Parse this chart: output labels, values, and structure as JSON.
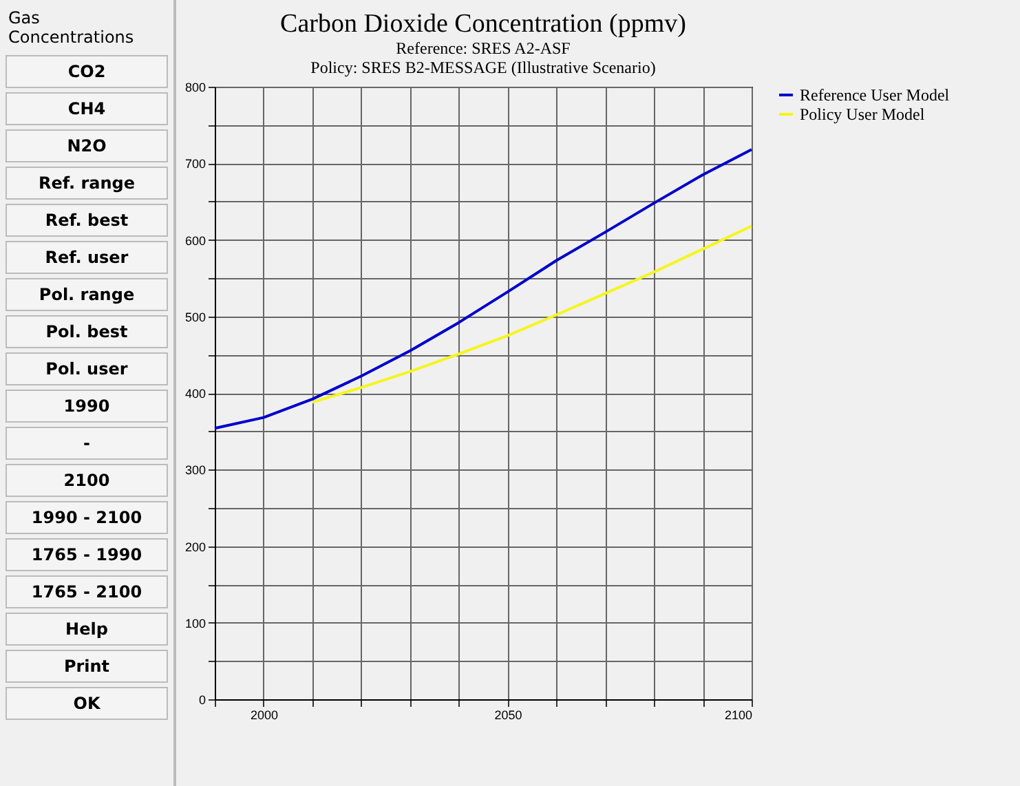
{
  "chart_data": [
    {
      "type": "other",
      "title": "Gas Concentrations",
      "annotations": [
        "CO2",
        "CH4",
        "N2O",
        "Ref. range",
        "Ref. best",
        "Ref. user",
        "Pol. range",
        "Pol. best",
        "Pol. user",
        "1990",
        "-",
        "2100",
        "1990 - 2100",
        "1765 - 1990",
        "1765 - 2100",
        "Help",
        "Print",
        "OK"
      ]
    },
    {
      "type": "line",
      "title": "Carbon Dioxide Concentration (ppmv)",
      "subtitle": "Reference: SRES A2-ASF\nPolicy: SRES B2-MESSAGE (Illustrative Scenario)",
      "x": [
        1990,
        2000,
        2010,
        2020,
        2030,
        2040,
        2050,
        2060,
        2070,
        2080,
        2090,
        2100
      ],
      "series": [
        {
          "name": "Reference User Model",
          "color": "#0000cc",
          "values": [
            354,
            368,
            392,
            422,
            455,
            492,
            532,
            573,
            610,
            648,
            685,
            718
          ]
        },
        {
          "name": "Policy User Model",
          "color": "#f5f51e",
          "x": [
            2010,
            2020,
            2030,
            2040,
            2050,
            2060,
            2070,
            2080,
            2090,
            2100
          ],
          "values": [
            388,
            407,
            428,
            451,
            475,
            502,
            530,
            558,
            588,
            618
          ]
        }
      ],
      "xlim": [
        1990,
        2100
      ],
      "xticks": [
        {
          "value": 1990,
          "label": null
        },
        2000,
        {
          "value": 2010,
          "label": null
        },
        {
          "value": 2020,
          "label": null
        },
        {
          "value": 2030,
          "label": null
        },
        {
          "value": 2040,
          "label": null
        },
        2050,
        {
          "value": 2060,
          "label": null
        },
        {
          "value": 2070,
          "label": null
        },
        {
          "value": 2080,
          "label": null
        },
        {
          "value": 2090,
          "label": null
        },
        2100
      ],
      "ylim": [
        0,
        800
      ],
      "yticks": [
        0,
        {
          "value": 50,
          "label": null
        },
        100,
        {
          "value": 150,
          "label": null
        },
        200,
        {
          "value": 250,
          "label": null
        },
        300,
        {
          "value": 350,
          "label": null
        },
        400,
        {
          "value": 450,
          "label": null
        },
        500,
        {
          "value": 550,
          "label": null
        },
        600,
        {
          "value": 650,
          "label": null
        },
        700,
        {
          "value": 750,
          "label": null
        },
        800
      ],
      "grid": true,
      "legend": "right",
      "line_style": "solid"
    }
  ]
}
